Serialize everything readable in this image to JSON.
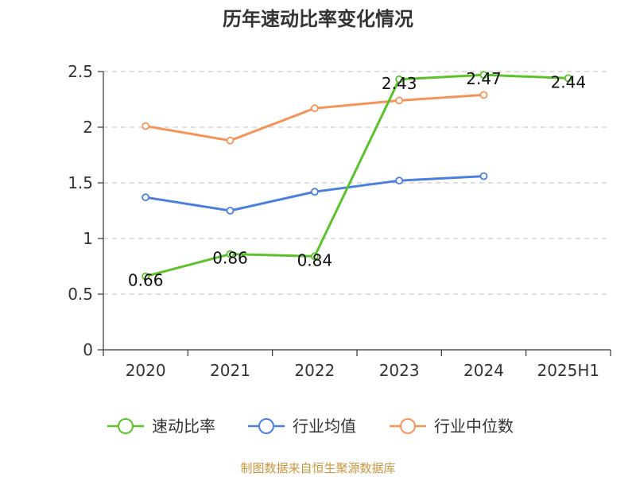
{
  "title": "历年速动比率变化情况",
  "source": "制图数据来自恒生聚源数据库",
  "chart_data": {
    "type": "line",
    "title": "历年速动比率变化情况",
    "categories": [
      "2020",
      "2021",
      "2022",
      "2023",
      "2024",
      "2025H1"
    ],
    "ylim": [
      0,
      2.5
    ],
    "yticks": [
      0,
      0.5,
      1,
      1.5,
      2,
      2.5
    ],
    "ytick_labels": [
      "0",
      "0.5",
      "1",
      "1.5",
      "2",
      "2.5"
    ],
    "grid": true,
    "legend_position": "bottom",
    "series": [
      {
        "name": "速动比率",
        "color": "#5cc22c",
        "values": [
          0.66,
          0.86,
          0.84,
          2.43,
          2.47,
          2.44
        ],
        "labels": [
          "0.66",
          "0.86",
          "0.84",
          "2.43",
          "2.47",
          "2.44"
        ],
        "show_markers": true
      },
      {
        "name": "行业均值",
        "color": "#4a7fdc",
        "values": [
          1.37,
          1.25,
          1.42,
          1.52,
          1.56,
          null
        ],
        "show_markers": true
      },
      {
        "name": "行业中位数",
        "color": "#f59358",
        "values": [
          2.01,
          1.88,
          2.17,
          2.24,
          2.29,
          null
        ],
        "show_markers": true
      }
    ]
  }
}
